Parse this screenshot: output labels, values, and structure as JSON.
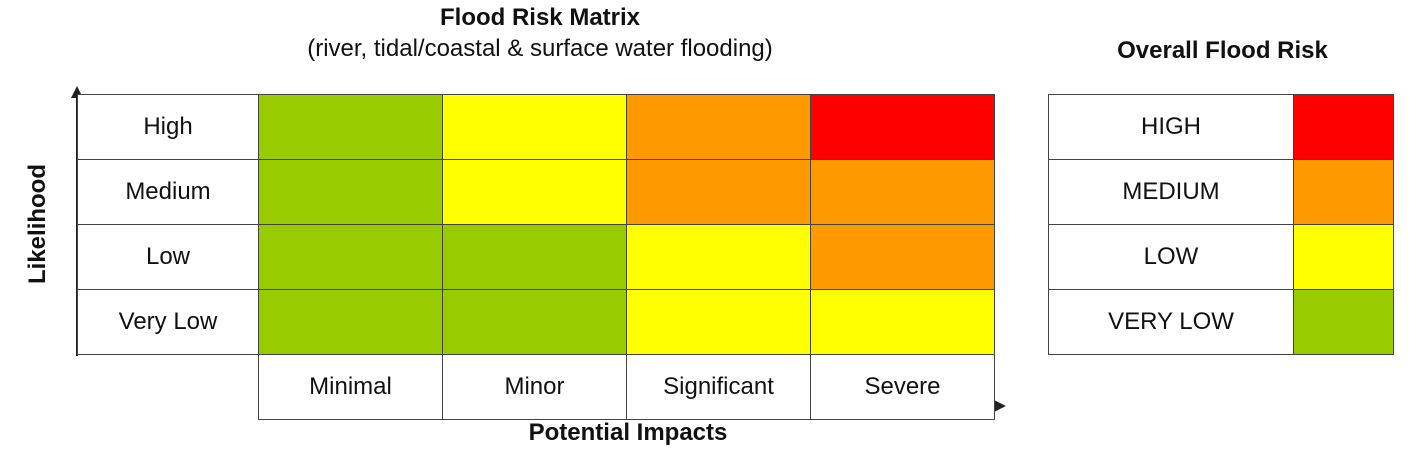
{
  "title": "Flood Risk Matrix",
  "subtitle": "(river, tidal/coastal & surface water flooding)",
  "legend_title": "Overall Flood Risk",
  "y_axis_label": "Likelihood",
  "x_axis_label": "Potential Impacts",
  "colors": {
    "very_low": "#99cc00",
    "low": "#ffff00",
    "medium": "#ff9900",
    "high": "#ff0000"
  },
  "matrix": {
    "rows": [
      {
        "label": "High",
        "levels": [
          "very_low",
          "low",
          "medium",
          "high"
        ]
      },
      {
        "label": "Medium",
        "levels": [
          "very_low",
          "low",
          "medium",
          "medium"
        ]
      },
      {
        "label": "Low",
        "levels": [
          "very_low",
          "very_low",
          "low",
          "medium"
        ]
      },
      {
        "label": "Very Low",
        "levels": [
          "very_low",
          "very_low",
          "low",
          "low"
        ]
      }
    ],
    "columns": [
      "Minimal",
      "Minor",
      "Significant",
      "Severe"
    ]
  },
  "legend": [
    {
      "label": "HIGH",
      "level": "high"
    },
    {
      "label": "MEDIUM",
      "level": "medium"
    },
    {
      "label": "LOW",
      "level": "low"
    },
    {
      "label": "VERY LOW",
      "level": "very_low"
    }
  ]
}
